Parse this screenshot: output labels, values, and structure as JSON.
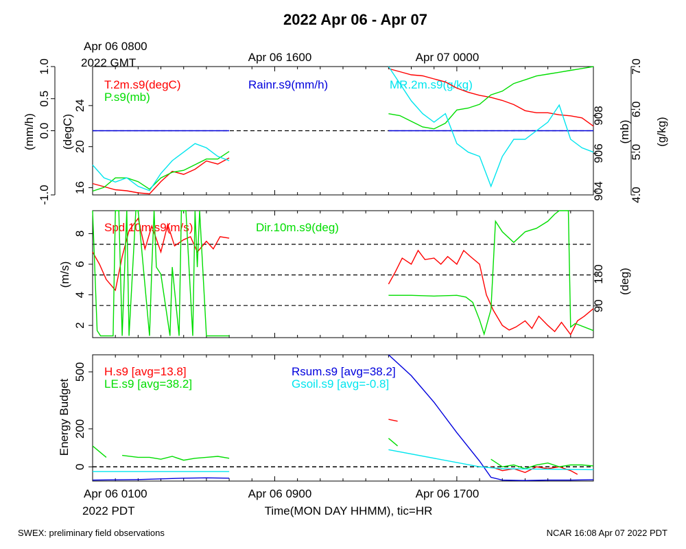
{
  "title": "2022 Apr 06 - Apr 07",
  "top_axis": {
    "first_label_line1": "Apr 06 0800",
    "first_label_line2": "2022 GMT",
    "labels": [
      "Apr 06 1600",
      "Apr 07 0000"
    ]
  },
  "bottom_axis": {
    "first_label_line1": "Apr 06 0100",
    "first_label_line2": "2022 PDT",
    "labels": [
      "Apr 06 0900",
      "Apr 06 1700"
    ],
    "title": "Time(MON DAY HHMM), tic=HR"
  },
  "footer": {
    "left": "SWEX: preliminary field observations",
    "right": "NCAR 16:08 Apr 07 2022 PDT"
  },
  "colors": {
    "red": "#ff0000",
    "green": "#00dd00",
    "blue": "#0000dd",
    "cyan": "#00e5ee",
    "black": "#000000"
  },
  "chart_data": [
    {
      "type": "line",
      "panel": "meteorology",
      "x_unit": "hours after Apr 06 0100 PDT",
      "xlim": [
        0,
        22
      ],
      "axes": {
        "rain": {
          "label": "(mm/h)",
          "ticks": [
            "-1.0",
            "0.0",
            "0.5",
            "1.0"
          ],
          "ylim": [
            -1.0,
            1.0
          ]
        },
        "temp": {
          "label": "(degC)",
          "ticks": [
            "16",
            "20",
            "24"
          ],
          "ylim": [
            15.3,
            27.8
          ]
        },
        "press": {
          "label": "(mb)",
          "ticks": [
            "904",
            "906",
            "908"
          ],
          "ylim": [
            903.8,
            910.6
          ]
        },
        "mr": {
          "label": "(g/kg)",
          "ticks": [
            "4.0",
            "5.0",
            "6.0",
            "7.0"
          ],
          "ylim": [
            4.0,
            7.0
          ]
        }
      },
      "series": [
        {
          "name": "T.2m.s9(degC)",
          "color": "red",
          "axis": "temp",
          "x": [
            0,
            0.5,
            1,
            1.5,
            2,
            2.5,
            3,
            3.5,
            4,
            4.5,
            5,
            5.5,
            6,
            13,
            13.5,
            14,
            14.5,
            15,
            15.5,
            16,
            16.5,
            17,
            17.5,
            18,
            18.5,
            19,
            19.5,
            20,
            20.5,
            21,
            21.5,
            22
          ],
          "y": [
            16.4,
            16.1,
            15.8,
            15.7,
            15.5,
            15.4,
            16.6,
            17.6,
            17.3,
            17.8,
            18.6,
            18.3,
            18.9,
            27.6,
            27.3,
            27.0,
            26.9,
            26.6,
            26.3,
            25.7,
            25.3,
            25.0,
            24.8,
            24.5,
            24.1,
            23.5,
            23.3,
            23.3,
            23.1,
            23.0,
            22.8,
            22.0
          ]
        },
        {
          "name": "P.s9(mb)",
          "color": "green",
          "axis": "press",
          "x": [
            0,
            0.5,
            1,
            1.5,
            2,
            2.5,
            3,
            3.5,
            4,
            4.5,
            5,
            5.5,
            6,
            13,
            13.5,
            14,
            14.5,
            15,
            15.5,
            16,
            16.5,
            17,
            17.5,
            18,
            18.5,
            19,
            19.5,
            20,
            20.5,
            21,
            21.5,
            22
          ],
          "y": [
            904.0,
            904.2,
            904.7,
            904.7,
            904.5,
            904.1,
            904.7,
            905.0,
            905.1,
            905.4,
            905.7,
            905.7,
            906.1,
            908.1,
            908.0,
            907.7,
            907.4,
            907.3,
            907.6,
            908.3,
            908.4,
            908.6,
            909.1,
            909.3,
            909.7,
            909.9,
            910.1,
            910.2,
            910.3,
            910.4,
            910.5,
            910.6
          ]
        },
        {
          "name": "Rainr.s9(mm/h)",
          "color": "blue",
          "axis": "rain",
          "x": [
            0,
            6,
            13,
            22
          ],
          "y": [
            0.0,
            0.0,
            0.0,
            0.0
          ]
        },
        {
          "name": "MR.2m.s9(g/kg)",
          "color": "cyan",
          "axis": "mr",
          "x": [
            0,
            0.5,
            1,
            1.5,
            2,
            2.5,
            3,
            3.5,
            4,
            4.5,
            5,
            5.5,
            6,
            13,
            13.5,
            14,
            14.5,
            15,
            15.5,
            16,
            16.5,
            17,
            17.5,
            18,
            18.5,
            19,
            19.5,
            20,
            20.5,
            21,
            21.5,
            22
          ],
          "y": [
            4.7,
            4.4,
            4.3,
            4.4,
            4.2,
            4.1,
            4.5,
            4.8,
            5.0,
            5.2,
            5.1,
            4.9,
            4.8,
            7.0,
            6.6,
            6.2,
            5.9,
            5.7,
            5.9,
            5.2,
            5.0,
            4.9,
            4.2,
            4.9,
            5.3,
            5.3,
            5.5,
            5.7,
            6.1,
            5.3,
            5.1,
            5.0
          ]
        }
      ],
      "reference_lines": [
        {
          "axis": "rain",
          "y": 0.0,
          "style": "dashed"
        }
      ]
    },
    {
      "type": "line",
      "panel": "wind",
      "xlim": [
        0,
        22
      ],
      "axes": {
        "speed": {
          "label": "(m/s)",
          "ticks": [
            "2",
            "4",
            "6",
            "8"
          ],
          "ylim": [
            1.2,
            9.5
          ]
        },
        "dir": {
          "label": "(deg)",
          "ticks": [
            "90",
            "180"
          ],
          "ylim": [
            0,
            360
          ]
        }
      },
      "series": [
        {
          "name": "Spd.10m.s9(m/s)",
          "color": "red",
          "axis": "speed",
          "x": [
            0,
            0.3,
            0.6,
            1,
            1.3,
            1.6,
            2,
            2.3,
            2.6,
            3,
            3.3,
            3.6,
            4,
            4.3,
            4.6,
            5,
            5.3,
            5.6,
            6,
            13,
            13.3,
            13.6,
            14,
            14.3,
            14.6,
            15,
            15.3,
            15.6,
            16,
            16.3,
            16.6,
            17,
            17.3,
            17.6,
            18,
            18.3,
            18.6,
            19,
            19.3,
            19.6,
            20,
            20.3,
            20.6,
            21,
            21.3,
            21.6,
            22
          ],
          "y": [
            6.8,
            6.0,
            5.0,
            4.3,
            6.5,
            8.2,
            9.0,
            7.0,
            8.5,
            6.8,
            8.6,
            7.2,
            7.6,
            7.8,
            6.8,
            7.5,
            7.0,
            7.8,
            7.7,
            4.7,
            5.5,
            6.4,
            6.0,
            6.9,
            6.3,
            6.4,
            6.0,
            6.5,
            6.0,
            6.9,
            6.5,
            6.0,
            4.0,
            3.0,
            2.0,
            1.7,
            1.9,
            2.3,
            1.8,
            2.6,
            2.0,
            1.6,
            2.2,
            1.4,
            2.3,
            2.6,
            3.1
          ]
        },
        {
          "name": "Dir.10m.s9(deg)",
          "color": "green",
          "axis": "dir",
          "x": [
            0,
            0.2,
            0.35,
            0.6,
            0.9,
            1.0,
            1.15,
            1.3,
            1.5,
            1.6,
            1.9,
            2.0,
            2.5,
            2.6,
            2.7,
            2.8,
            3.0,
            3.4,
            3.5,
            3.8,
            3.9,
            4.1,
            4.4,
            4.5,
            4.6,
            4.7,
            5,
            6,
            13,
            14,
            15,
            16,
            16.4,
            16.7,
            17.0,
            17.2,
            17.5,
            17.7,
            18,
            18.5,
            19,
            19.5,
            20,
            20.3,
            20.5,
            20.9,
            21.0,
            21.2,
            22
          ],
          "y": [
            360,
            20,
            5,
            5,
            5,
            360,
            360,
            5,
            360,
            5,
            360,
            360,
            5,
            200,
            360,
            200,
            180,
            5,
            200,
            5,
            360,
            360,
            5,
            360,
            200,
            360,
            5,
            5,
            120,
            120,
            118,
            120,
            115,
            100,
            50,
            10,
            80,
            330,
            300,
            270,
            300,
            310,
            330,
            350,
            360,
            360,
            30,
            40,
            20
          ]
        }
      ],
      "reference_lines": [
        {
          "axis": "speed",
          "y": 7.3,
          "style": "dashed"
        },
        {
          "axis": "speed",
          "y": 5.3,
          "style": "dashed"
        },
        {
          "axis": "speed",
          "y": 3.3,
          "style": "dashed"
        }
      ]
    },
    {
      "type": "line",
      "panel": "energy",
      "ylabel": "Energy Budget",
      "yticks": [
        "0",
        "200",
        "500"
      ],
      "ylim": [
        -75,
        590
      ],
      "xlim": [
        0,
        22
      ],
      "series": [
        {
          "name": "H.s9 [avg=13.8]",
          "color": "red",
          "segments": [
            {
              "x": [
                13.0,
                13.4
              ],
              "y": [
                250,
                240
              ]
            },
            {
              "x": [
                17.5,
                18.0,
                18.5,
                19.0,
                19.5,
                20.0,
                20.5,
                21.0,
                21.3
              ],
              "y": [
                0,
                -20,
                -10,
                -30,
                0,
                -10,
                0,
                -20,
                -40
              ]
            }
          ]
        },
        {
          "name": "LE.s9 [avg=38.2]",
          "color": "green",
          "segments": [
            {
              "x": [
                0,
                0.6
              ],
              "y": [
                110,
                50
              ]
            },
            {
              "x": [
                1.3,
                2,
                2.5,
                3,
                3.5,
                4,
                4.5,
                5,
                5.5,
                6
              ],
              "y": [
                60,
                50,
                50,
                40,
                55,
                35,
                45,
                50,
                55,
                45
              ]
            },
            {
              "x": [
                13.0,
                13.4
              ],
              "y": [
                150,
                110
              ]
            },
            {
              "x": [
                17.5,
                18.0,
                18.5,
                19.0,
                19.5,
                20.0,
                20.5,
                21.0,
                21.5,
                22
              ],
              "y": [
                40,
                0,
                10,
                -10,
                10,
                20,
                0,
                10,
                10,
                5
              ]
            }
          ]
        },
        {
          "name": "Rsum.s9 [avg=38.2]",
          "color": "blue",
          "segments": [
            {
              "x": [
                0,
                2,
                4,
                5,
                6
              ],
              "y": [
                -70,
                -67,
                -60,
                -58,
                -60
              ]
            },
            {
              "x": [
                13.0,
                14.0,
                15.0,
                16.0,
                17.0,
                17.5,
                18.0,
                19.0,
                20.0,
                21.0,
                22.0
              ],
              "y": [
                590,
                480,
                340,
                180,
                30,
                -55,
                -70,
                -72,
                -70,
                -70,
                -68
              ]
            }
          ]
        },
        {
          "name": "Gsoil.s9 [avg=-0.8]",
          "color": "cyan",
          "segments": [
            {
              "x": [
                0,
                6
              ],
              "y": [
                -25,
                -25
              ]
            },
            {
              "x": [
                13.0,
                17.0,
                18.0,
                22.0
              ],
              "y": [
                90,
                0,
                -10,
                -15
              ]
            }
          ]
        }
      ],
      "reference_lines": [
        {
          "y": 0,
          "style": "dashed"
        }
      ]
    }
  ]
}
